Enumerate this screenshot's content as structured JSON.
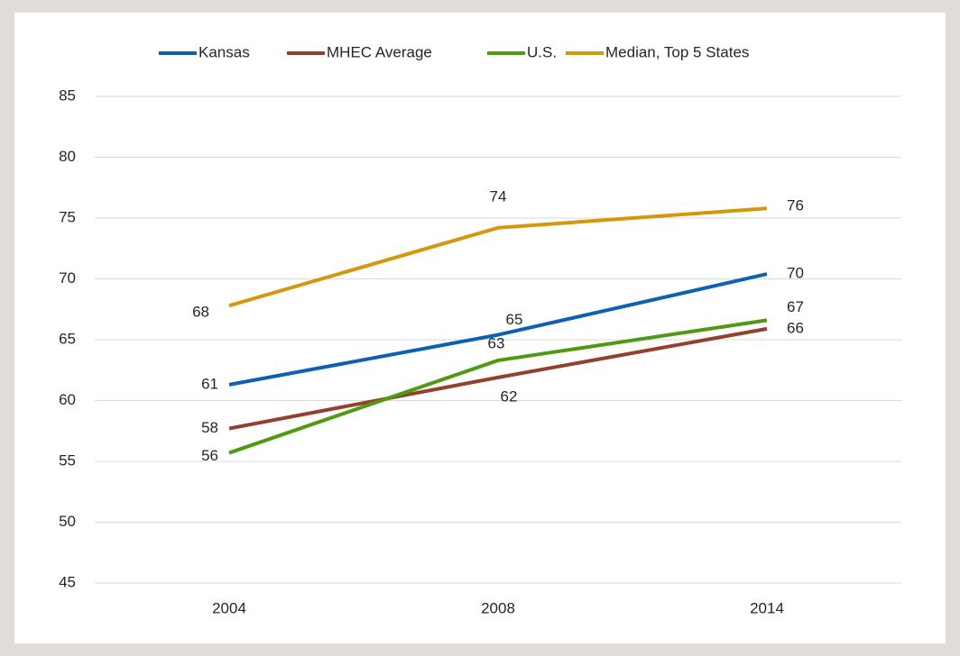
{
  "chart_data": {
    "type": "line",
    "categories": [
      "2004",
      "2008",
      "2014"
    ],
    "series": [
      {
        "name": "Kansas",
        "color": "#0f5fb5",
        "values": [
          61.3,
          65.4,
          70.4
        ],
        "value_labels": [
          "61",
          "65",
          "70"
        ]
      },
      {
        "name": "MHEC Average",
        "color": "#94402f",
        "values": [
          57.7,
          61.9,
          65.9
        ],
        "value_labels": [
          "58",
          "62",
          "66"
        ]
      },
      {
        "name": "U.S.",
        "color": "#4f9a12",
        "values": [
          55.7,
          63.3,
          66.6
        ],
        "value_labels": [
          "56",
          "63",
          "67"
        ]
      },
      {
        "name": "Median, Top 5 States",
        "color": "#d4980f",
        "values": [
          67.8,
          74.2,
          75.8
        ],
        "value_labels": [
          "68",
          "74",
          "76"
        ]
      }
    ],
    "ylim": [
      45,
      85
    ],
    "yticks": [
      45,
      50,
      55,
      60,
      65,
      70,
      75,
      80,
      85
    ],
    "grid": true,
    "legend": "top"
  }
}
